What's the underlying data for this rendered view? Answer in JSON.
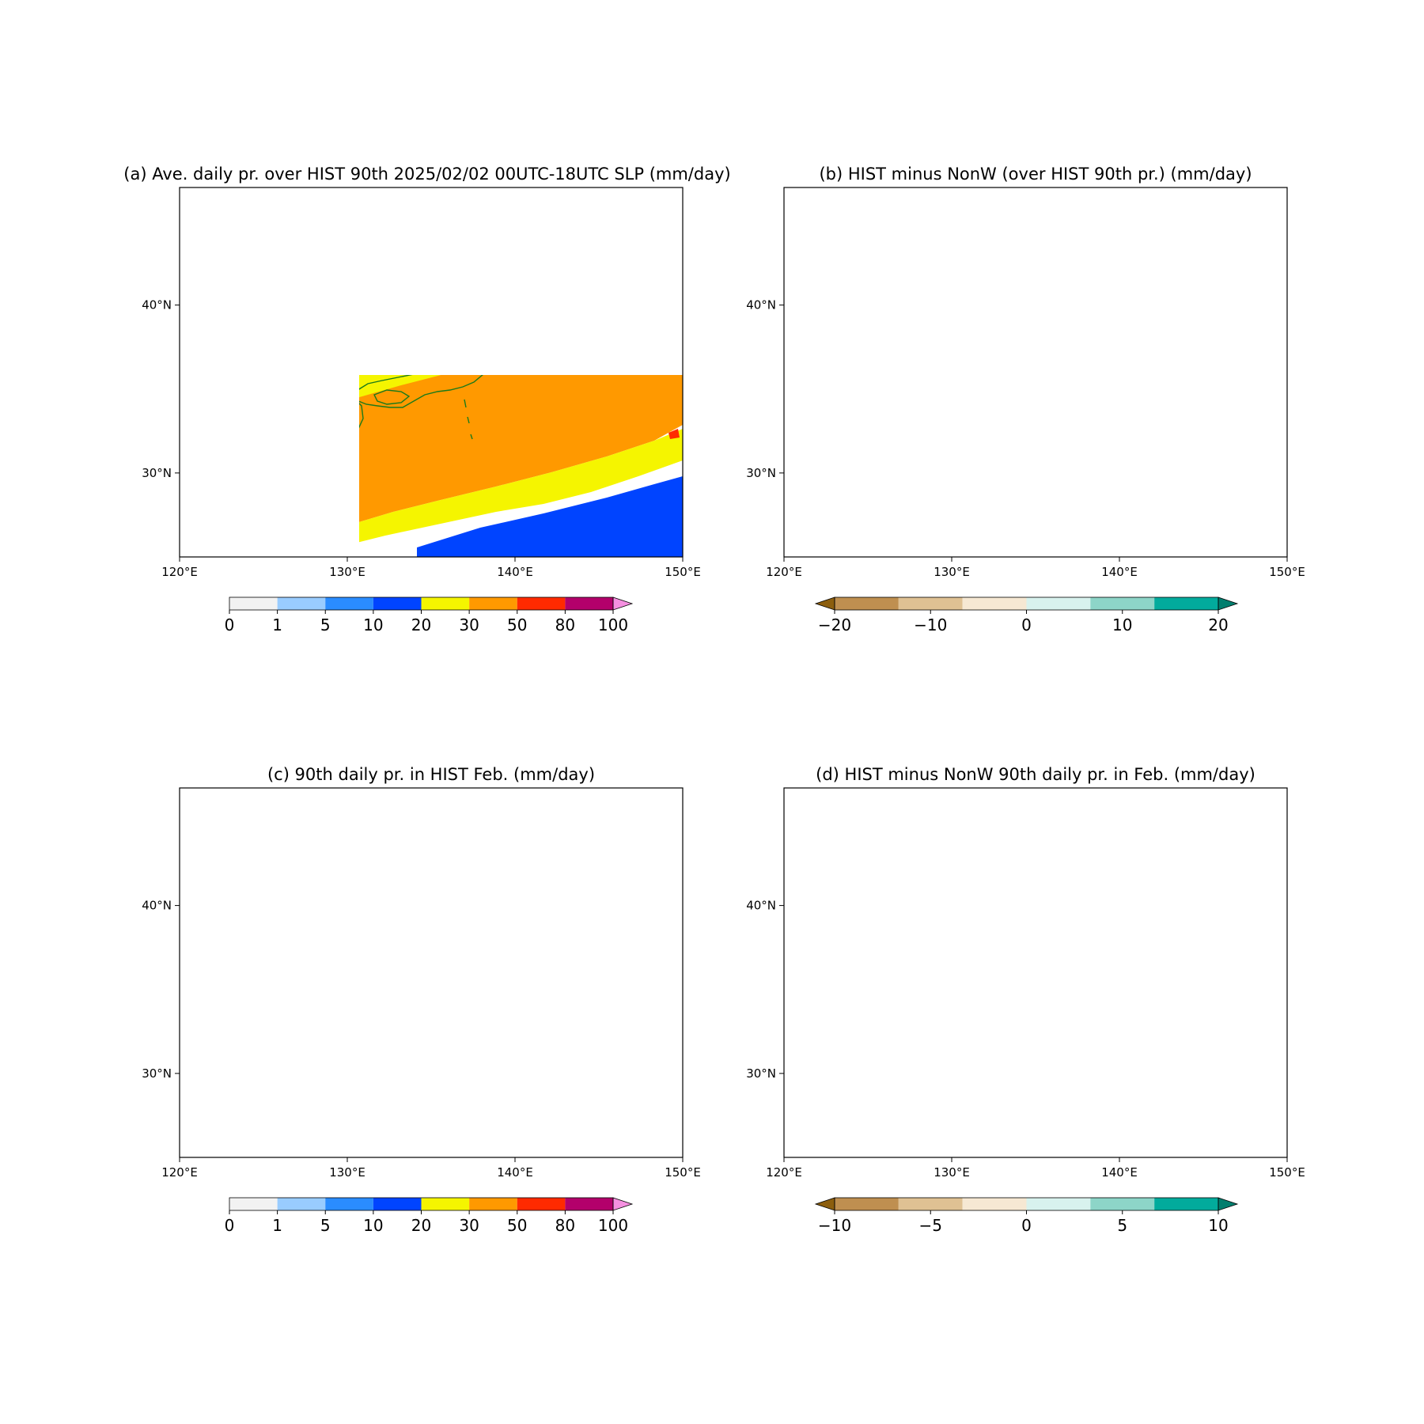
{
  "map": {
    "lon_ticks": [
      "120°E",
      "130°E",
      "140°E",
      "150°E"
    ],
    "lat_ticks": [
      "40°N",
      "30°N"
    ],
    "lon_range": [
      120,
      150
    ],
    "lat_range": [
      25,
      47
    ]
  },
  "panels": [
    {
      "title": "(a) Ave. daily pr. over HIST 90th 2025/02/02 00UTC-18UTC SLP (mm/day)",
      "coastline_color": "#1a7a1a",
      "colorbar": {
        "labels": [
          "0",
          "1",
          "5",
          "10",
          "20",
          "30",
          "50",
          "80",
          "100"
        ],
        "colors": [
          "#f2f2f2",
          "#99ccff",
          "#2a8cff",
          "#0044ff",
          "#f5f500",
          "#ff9900",
          "#ff2a00",
          "#b3006b"
        ],
        "extend_color": "#f590e0",
        "extend": "max"
      }
    },
    {
      "title": "(b) HIST minus NonW (over HIST 90th pr.) (mm/day)",
      "coastline_color": "#0000dd",
      "colorbar": {
        "labels": [
          "−20",
          "−10",
          "0",
          "10",
          "20"
        ],
        "colors": [
          "#8c5e0e",
          "#bf8f50",
          "#dfc193",
          "#f6e8d3",
          "#d8f2ee",
          "#8dd5c8",
          "#02ab9c",
          "#017e6e"
        ],
        "extend": "both"
      }
    },
    {
      "title": "(c) 90th daily pr. in HIST Feb. (mm/day)",
      "coastline_color": "#1a7a1a",
      "colorbar": {
        "labels": [
          "0",
          "1",
          "5",
          "10",
          "20",
          "30",
          "50",
          "80",
          "100"
        ],
        "colors": [
          "#f2f2f2",
          "#99ccff",
          "#2a8cff",
          "#0044ff",
          "#f5f500",
          "#ff9900",
          "#ff2a00",
          "#b3006b"
        ],
        "extend_color": "#f590e0",
        "extend": "max"
      }
    },
    {
      "title": "(d) HIST minus NonW 90th daily pr. in Feb. (mm/day)",
      "coastline_color": "#1a7a1a",
      "colorbar": {
        "labels": [
          "−10",
          "−5",
          "0",
          "5",
          "10"
        ],
        "colors": [
          "#8c5e0e",
          "#bf8f50",
          "#dfc193",
          "#f6e8d3",
          "#d8f2ee",
          "#8dd5c8",
          "#02ab9c",
          "#017e6e"
        ],
        "extend": "both"
      }
    }
  ]
}
